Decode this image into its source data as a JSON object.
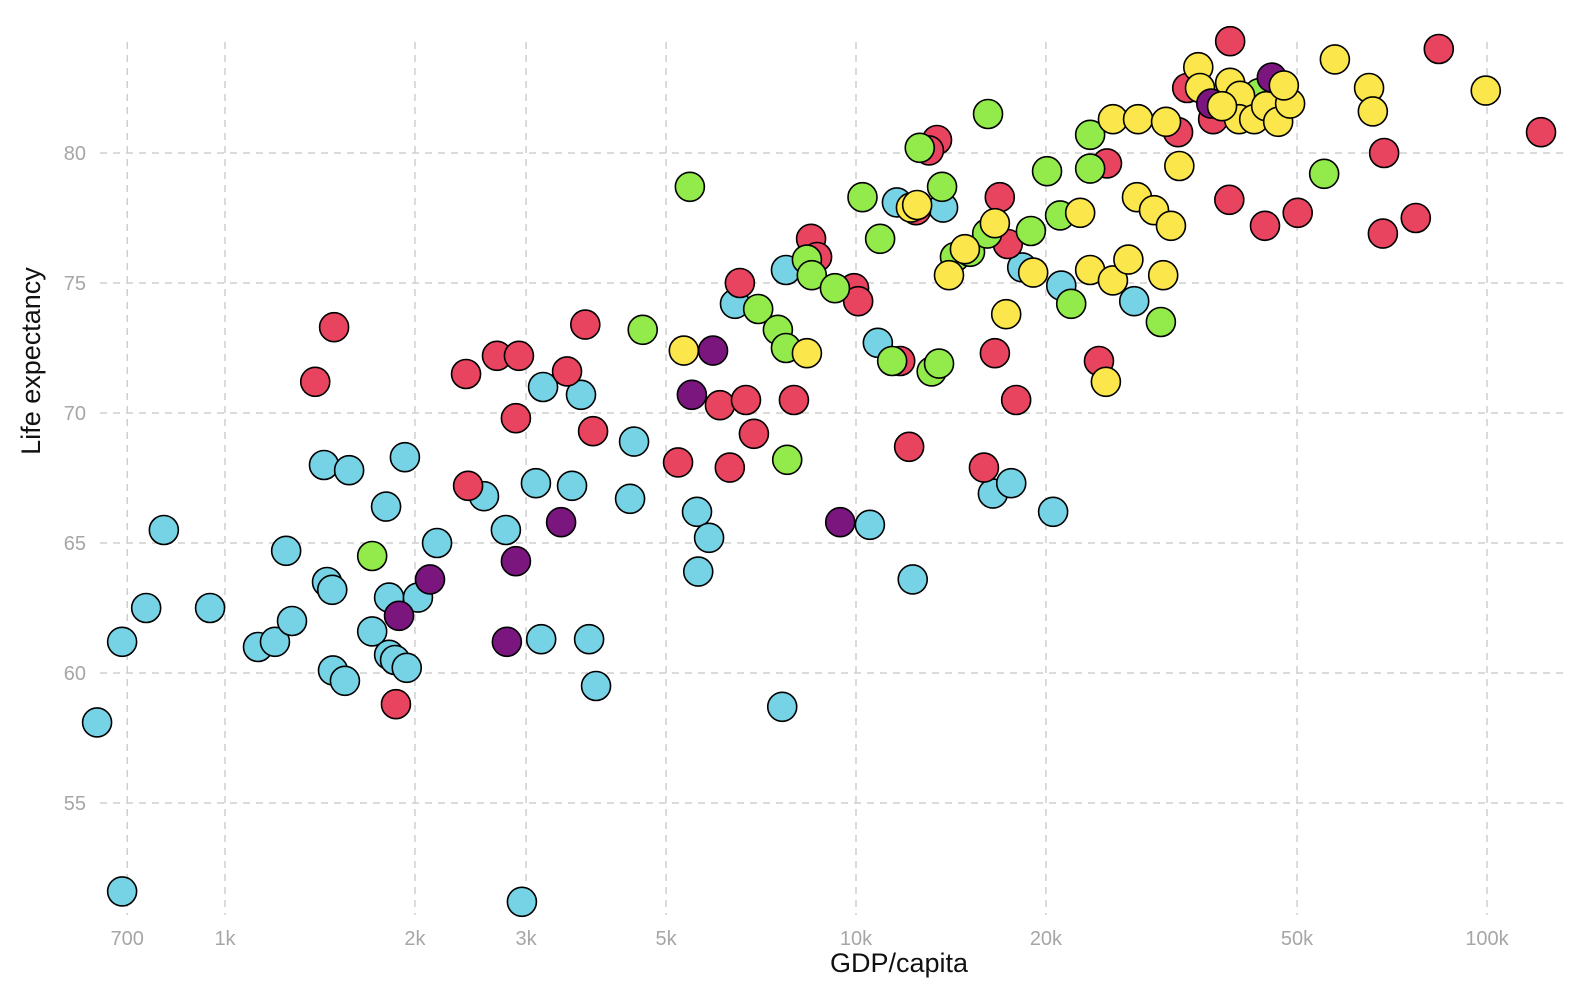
{
  "chart_data": {
    "type": "scatter",
    "title": "",
    "xlabel": "GDP/capita",
    "ylabel": "Life expectancy",
    "xscale": "log",
    "xlim": [
      590,
      128000
    ],
    "ylim": [
      50.5,
      85.5
    ],
    "grid": true,
    "x_ticks": [
      {
        "v": 700,
        "label": "700"
      },
      {
        "v": 1000,
        "label": "1k"
      },
      {
        "v": 2000,
        "label": "2k"
      },
      {
        "v": 3000,
        "label": "3k"
      },
      {
        "v": 5000,
        "label": "5k"
      },
      {
        "v": 10000,
        "label": "10k"
      },
      {
        "v": 20000,
        "label": "20k"
      },
      {
        "v": 50000,
        "label": "50k"
      },
      {
        "v": 100000,
        "label": "100k"
      }
    ],
    "y_ticks": [
      {
        "v": 55,
        "label": "55"
      },
      {
        "v": 60,
        "label": "60"
      },
      {
        "v": 65,
        "label": "65"
      },
      {
        "v": 70,
        "label": "70"
      },
      {
        "v": 75,
        "label": "75"
      },
      {
        "v": 80,
        "label": "80"
      }
    ],
    "colors": {
      "c": "#76d3e6",
      "r": "#e8435f",
      "p": "#7a167e",
      "g": "#92eb4a",
      "y": "#fbe64b"
    },
    "series": [
      {
        "name": "cyan",
        "color_key": "c",
        "points": [
          [
            627,
            58.1
          ],
          [
            687,
            51.6
          ],
          [
            687,
            61.2
          ],
          [
            750,
            62.5
          ],
          [
            800,
            65.5
          ],
          [
            947,
            62.5
          ],
          [
            1128,
            61.0
          ],
          [
            1200,
            61.2
          ],
          [
            1250,
            64.7
          ],
          [
            1277,
            62.0
          ],
          [
            1435,
            68.0
          ],
          [
            1451,
            63.5
          ],
          [
            1479,
            63.2
          ],
          [
            1483,
            60.1
          ],
          [
            1549,
            59.7
          ],
          [
            1573,
            67.8
          ],
          [
            1711,
            61.6
          ],
          [
            1800,
            66.4
          ],
          [
            1820,
            62.9
          ],
          [
            1820,
            60.7
          ],
          [
            1860,
            60.5
          ],
          [
            1941,
            60.2
          ],
          [
            1928,
            68.3
          ],
          [
            2022,
            62.9
          ],
          [
            2168,
            65.0
          ],
          [
            2573,
            66.8
          ],
          [
            2787,
            65.5
          ],
          [
            2955,
            51.2
          ],
          [
            3110,
            67.3
          ],
          [
            3170,
            61.3
          ],
          [
            3192,
            71.0
          ],
          [
            3548,
            67.2
          ],
          [
            3666,
            70.7
          ],
          [
            3776,
            61.3
          ],
          [
            3873,
            59.5
          ],
          [
            4385,
            66.7
          ],
          [
            4449,
            68.9
          ],
          [
            5598,
            66.2
          ],
          [
            5623,
            63.9
          ],
          [
            5850,
            65.2
          ],
          [
            6430,
            74.2
          ],
          [
            7640,
            58.7
          ],
          [
            7745,
            75.5
          ],
          [
            10520,
            65.7
          ],
          [
            10830,
            72.7
          ],
          [
            11610,
            78.1
          ],
          [
            12300,
            63.6
          ],
          [
            13740,
            77.9
          ],
          [
            16480,
            66.9
          ],
          [
            17620,
            67.3
          ],
          [
            18340,
            75.6
          ],
          [
            20530,
            66.2
          ],
          [
            21150,
            74.9
          ],
          [
            27600,
            74.3
          ]
        ]
      },
      {
        "name": "red",
        "color_key": "r",
        "points": [
          [
            1390,
            71.2
          ],
          [
            1489,
            73.3
          ],
          [
            1866,
            58.8
          ],
          [
            2410,
            71.5
          ],
          [
            2428,
            67.2
          ],
          [
            2698,
            72.2
          ],
          [
            2923,
            72.2
          ],
          [
            2891,
            69.8
          ],
          [
            3484,
            71.6
          ],
          [
            3724,
            73.4
          ],
          [
            3831,
            69.3
          ],
          [
            5224,
            68.1
          ],
          [
            6087,
            70.3
          ],
          [
            6310,
            67.9
          ],
          [
            6546,
            75.0
          ],
          [
            6693,
            70.5
          ],
          [
            6890,
            69.2
          ],
          [
            7973,
            70.5
          ],
          [
            8488,
            76.7
          ],
          [
            8676,
            76.0
          ],
          [
            9930,
            74.8
          ],
          [
            10080,
            74.3
          ],
          [
            11750,
            72.0
          ],
          [
            12140,
            68.7
          ],
          [
            12450,
            77.8
          ],
          [
            13440,
            80.5
          ],
          [
            13050,
            80.1
          ],
          [
            15950,
            67.9
          ],
          [
            16600,
            72.3
          ],
          [
            16900,
            78.3
          ],
          [
            17400,
            76.5
          ],
          [
            17940,
            70.5
          ],
          [
            24270,
            72.0
          ],
          [
            24990,
            79.6
          ],
          [
            32390,
            80.8
          ],
          [
            33490,
            82.5
          ],
          [
            36810,
            81.3
          ],
          [
            39170,
            84.3
          ],
          [
            39050,
            78.2
          ],
          [
            44480,
            77.2
          ],
          [
            50120,
            77.7
          ],
          [
            68390,
            76.9
          ],
          [
            68700,
            80.0
          ],
          [
            77120,
            77.5
          ],
          [
            83870,
            84.0
          ],
          [
            121800,
            80.8
          ]
        ]
      },
      {
        "name": "green",
        "color_key": "g",
        "points": [
          [
            1711,
            64.5
          ],
          [
            4592,
            73.2
          ],
          [
            5454,
            78.7
          ],
          [
            6998,
            74.0
          ],
          [
            7520,
            73.2
          ],
          [
            7745,
            72.5
          ],
          [
            7780,
            68.2
          ],
          [
            8360,
            75.9
          ],
          [
            8510,
            75.3
          ],
          [
            9260,
            74.8
          ],
          [
            10240,
            78.3
          ],
          [
            10920,
            76.7
          ],
          [
            11410,
            72.0
          ],
          [
            12620,
            80.2
          ],
          [
            13180,
            71.6
          ],
          [
            13540,
            71.9
          ],
          [
            13690,
            78.7
          ],
          [
            14350,
            76.0
          ],
          [
            15160,
            76.2
          ],
          [
            16190,
            81.5
          ],
          [
            16140,
            76.9
          ],
          [
            18930,
            77.0
          ],
          [
            20080,
            79.3
          ],
          [
            21060,
            77.6
          ],
          [
            21930,
            74.2
          ],
          [
            23500,
            80.7
          ],
          [
            23500,
            79.4
          ],
          [
            30420,
            73.5
          ],
          [
            43530,
            82.3
          ],
          [
            55200,
            79.2
          ]
        ]
      },
      {
        "name": "yellow",
        "color_key": "y",
        "points": [
          [
            5335,
            72.4
          ],
          [
            8360,
            72.3
          ],
          [
            12220,
            77.9
          ],
          [
            12500,
            78.0
          ],
          [
            14040,
            75.3
          ],
          [
            14880,
            76.3
          ],
          [
            16600,
            77.3
          ],
          [
            17300,
            73.8
          ],
          [
            19090,
            75.4
          ],
          [
            22660,
            77.7
          ],
          [
            23500,
            75.5
          ],
          [
            24890,
            71.2
          ],
          [
            25540,
            75.1
          ],
          [
            27020,
            75.9
          ],
          [
            25540,
            81.3
          ],
          [
            27990,
            81.3
          ],
          [
            27880,
            78.3
          ],
          [
            29670,
            77.8
          ],
          [
            30680,
            75.3
          ],
          [
            31560,
            77.2
          ],
          [
            31000,
            81.2
          ],
          [
            32540,
            79.5
          ],
          [
            34870,
            83.3
          ],
          [
            35090,
            82.5
          ],
          [
            39170,
            82.7
          ],
          [
            40620,
            82.2
          ],
          [
            40460,
            81.3
          ],
          [
            42760,
            81.3
          ],
          [
            44670,
            81.8
          ],
          [
            46670,
            81.2
          ],
          [
            48750,
            81.9
          ],
          [
            57400,
            83.6
          ],
          [
            65030,
            82.5
          ],
          [
            65930,
            81.6
          ],
          [
            99550,
            82.4
          ]
        ]
      },
      {
        "name": "purple",
        "color_key": "p",
        "points": [
          [
            1887,
            62.2
          ],
          [
            2113,
            63.6
          ],
          [
            2797,
            61.2
          ],
          [
            2891,
            64.3
          ],
          [
            3409,
            65.8
          ],
          [
            5494,
            70.7
          ],
          [
            5935,
            72.4
          ],
          [
            9440,
            65.8
          ],
          [
            36560,
            81.9
          ],
          [
            45600,
            82.9
          ]
        ]
      },
      {
        "name": "yellow-top",
        "color_key": "y",
        "points": [
          [
            38030,
            81.8
          ],
          [
            47650,
            82.6
          ]
        ]
      }
    ]
  }
}
